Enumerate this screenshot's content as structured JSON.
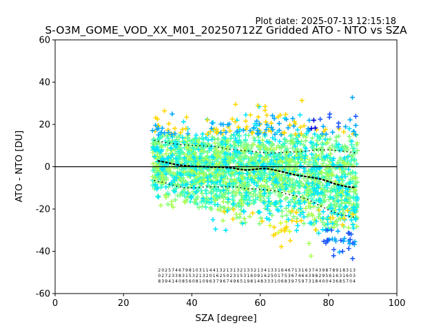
{
  "plot_date": "Plot date: 2025-07-13 12:15:18",
  "chart_data": {
    "type": "scatter",
    "title": "S-O3M_GOME_VOD_XX_M01_20250712Z Gridded ATO - NTO vs SZA",
    "xlabel": "SZA [degree]",
    "ylabel": "ATO - NTO [DU]",
    "xlim": [
      0,
      100
    ],
    "ylim": [
      -60,
      60
    ],
    "xticks": [
      0,
      20,
      40,
      60,
      80,
      100
    ],
    "yticks": [
      -60,
      -40,
      -20,
      0,
      20,
      40,
      60
    ],
    "grid": false,
    "legend": "none",
    "zero_line": 0,
    "scatter_x_range": [
      28.5,
      88.5
    ],
    "point_colors": [
      "#7fff7f",
      "#aaff55",
      "#d4ff2a",
      "#00e5ff",
      "#33ffcc",
      "#ffd700",
      "#00a8ff",
      "#1c56ff",
      "#0000dd"
    ],
    "series": [
      {
        "name": "",
        "role": "binned mean",
        "style": "black dashes",
        "x": [
          30,
          32,
          34,
          36,
          38,
          40,
          42,
          44,
          46,
          48,
          50,
          52,
          54,
          56,
          58,
          60,
          62,
          64,
          66,
          68,
          70,
          72,
          74,
          76,
          78,
          80,
          82,
          84,
          86,
          88
        ],
        "y": [
          2.8,
          2.2,
          1.5,
          0.8,
          0.5,
          0.2,
          0.1,
          0.0,
          -0.2,
          -0.2,
          -0.4,
          -0.6,
          -1.2,
          -1.6,
          -1.3,
          -0.9,
          -0.9,
          -1.5,
          -2.2,
          -3.0,
          -3.8,
          -4.3,
          -4.8,
          -5.3,
          -6.0,
          -7.0,
          -8.2,
          -9.0,
          -9.6,
          -9.8
        ]
      },
      {
        "name": "",
        "role": "mean + 1 std",
        "style": "black dots",
        "x": [
          29,
          32,
          35,
          38,
          41,
          44,
          47,
          50,
          53,
          56,
          59,
          62,
          65,
          68,
          71,
          74,
          77,
          80,
          83,
          86,
          88
        ],
        "y": [
          12.5,
          11.5,
          10.8,
          10.3,
          10.0,
          9.8,
          9.5,
          8.5,
          8.0,
          7.5,
          7.0,
          6.5,
          6.5,
          7.0,
          7.0,
          7.5,
          8.0,
          8.0,
          7.5,
          7.0,
          6.5
        ]
      },
      {
        "name": "",
        "role": "mean - 1 std",
        "style": "black dots",
        "x": [
          29,
          32,
          35,
          38,
          41,
          44,
          47,
          50,
          53,
          56,
          59,
          62,
          65,
          68,
          71,
          74,
          77,
          80,
          83,
          86,
          88
        ],
        "y": [
          -6.5,
          -7.5,
          -9.0,
          -10.0,
          -10.0,
          -9.5,
          -9.5,
          -9.5,
          -9.5,
          -10.5,
          -10.5,
          -11.0,
          -11.5,
          -13.0,
          -14.0,
          -15.5,
          -18.0,
          -20.5,
          -22.5,
          -23.5,
          -24.0
        ]
      }
    ],
    "count_annotations": [
      {
        "x": 30.5,
        "line1": "2",
        "line2": "0",
        "line3": "8"
      },
      {
        "x": 31.5,
        "line1": "0",
        "line2": "2",
        "line3": "3"
      },
      {
        "x": 32.5,
        "line1": "2",
        "line2": "7",
        "line3": "9"
      },
      {
        "x": 33.5,
        "line1": "5",
        "line2": "2",
        "line3": "4"
      },
      {
        "x": 34.5,
        "line1": "7",
        "line2": "3",
        "line3": "1"
      },
      {
        "x": 35.5,
        "line1": "4",
        "line2": "3",
        "line3": "4"
      },
      {
        "x": 36.5,
        "line1": "6",
        "line2": "8",
        "line3": "0"
      },
      {
        "x": 37.5,
        "line1": "7",
        "line2": "3",
        "line3": "8"
      },
      {
        "x": 38.5,
        "line1": "9",
        "line2": "1",
        "line3": "5"
      },
      {
        "x": 39.5,
        "line1": "8",
        "line2": "5",
        "line3": "6"
      },
      {
        "x": 40.5,
        "line1": "1",
        "line2": "3",
        "line3": "0"
      },
      {
        "x": 41.5,
        "line1": "0",
        "line2": "2",
        "line3": "8"
      },
      {
        "x": 42.5,
        "line1": "3",
        "line2": "1",
        "line3": "1"
      },
      {
        "x": 43.5,
        "line1": "1",
        "line2": "3",
        "line3": "0"
      },
      {
        "x": 44.5,
        "line1": "1",
        "line2": "2",
        "line3": "9"
      },
      {
        "x": 45.5,
        "line1": "4",
        "line2": "0",
        "line3": "6"
      },
      {
        "x": 46.5,
        "line1": "4",
        "line2": "1",
        "line3": "3"
      },
      {
        "x": 47.5,
        "line1": "1",
        "line2": "6",
        "line3": "7"
      },
      {
        "x": 48.5,
        "line1": "3",
        "line2": "2",
        "line3": "9"
      },
      {
        "x": 49.5,
        "line1": "2",
        "line2": "5",
        "line3": "6"
      },
      {
        "x": 50.5,
        "line1": "1",
        "line2": "0",
        "line3": "7"
      },
      {
        "x": 51.5,
        "line1": "3",
        "line2": "2",
        "line3": "4"
      },
      {
        "x": 52.5,
        "line1": "1",
        "line2": "3",
        "line3": "9"
      },
      {
        "x": 53.5,
        "line1": "3",
        "line2": "1",
        "line3": "6"
      },
      {
        "x": 54.5,
        "line1": "2",
        "line2": "5",
        "line3": "5"
      },
      {
        "x": 55.5,
        "line1": "1",
        "line2": "3",
        "line3": "1"
      },
      {
        "x": 56.5,
        "line1": "3",
        "line2": "1",
        "line3": "9"
      },
      {
        "x": 57.5,
        "line1": "3",
        "line2": "6",
        "line3": "8"
      },
      {
        "x": 58.5,
        "line1": "2",
        "line2": "0",
        "line3": "1"
      },
      {
        "x": 59.5,
        "line1": "1",
        "line2": "9",
        "line3": "4"
      },
      {
        "x": 60.5,
        "line1": "3",
        "line2": "1",
        "line3": "8"
      },
      {
        "x": 61.5,
        "line1": "4",
        "line2": "6",
        "line3": "3"
      },
      {
        "x": 62.5,
        "line1": "1",
        "line2": "2",
        "line3": "3"
      },
      {
        "x": 63.5,
        "line1": "3",
        "line2": "5",
        "line3": "3"
      },
      {
        "x": 64.5,
        "line1": "3",
        "line2": "0",
        "line3": "1"
      },
      {
        "x": 65.5,
        "line1": "1",
        "line2": "1",
        "line3": "0"
      },
      {
        "x": 66.5,
        "line1": "6",
        "line2": "7",
        "line3": "6"
      },
      {
        "x": 67.5,
        "line1": "4",
        "line2": "5",
        "line3": "8"
      },
      {
        "x": 68.5,
        "line1": "6",
        "line2": "3",
        "line3": "3"
      },
      {
        "x": 69.5,
        "line1": "7",
        "line2": "6",
        "line3": "9"
      },
      {
        "x": 70.5,
        "line1": "1",
        "line2": "7",
        "line3": "7"
      },
      {
        "x": 71.5,
        "line1": "3",
        "line2": "4",
        "line3": "5"
      },
      {
        "x": 72.5,
        "line1": "1",
        "line2": "6",
        "line3": "9"
      },
      {
        "x": 73.5,
        "line1": "6",
        "line2": "4",
        "line3": "7"
      },
      {
        "x": 74.5,
        "line1": "3",
        "line2": "3",
        "line3": "3"
      },
      {
        "x": 75.5,
        "line1": "7",
        "line2": "9",
        "line3": "1"
      },
      {
        "x": 76.5,
        "line1": "4",
        "line2": "8",
        "line3": "8"
      },
      {
        "x": 77.5,
        "line1": "3",
        "line2": "2",
        "line3": "4"
      },
      {
        "x": 78.5,
        "line1": "9",
        "line2": "9",
        "line3": "0"
      },
      {
        "x": 79.5,
        "line1": "8",
        "line2": "5",
        "line3": "0"
      },
      {
        "x": 80.5,
        "line1": "7",
        "line2": "6",
        "line3": "4"
      },
      {
        "x": 81.5,
        "line1": "8",
        "line2": "1",
        "line3": "3"
      },
      {
        "x": 82.5,
        "line1": "9",
        "line2": "6",
        "line3": "6"
      },
      {
        "x": 83.5,
        "line1": "1",
        "line2": "3",
        "line3": "8"
      },
      {
        "x": 84.5,
        "line1": "8",
        "line2": "1",
        "line3": "5"
      },
      {
        "x": 85.5,
        "line1": "3",
        "line2": "6",
        "line3": "7"
      },
      {
        "x": 86.5,
        "line1": "1",
        "line2": "0",
        "line3": "0"
      },
      {
        "x": 87.5,
        "line1": "3",
        "line2": "3",
        "line3": "4"
      }
    ]
  }
}
